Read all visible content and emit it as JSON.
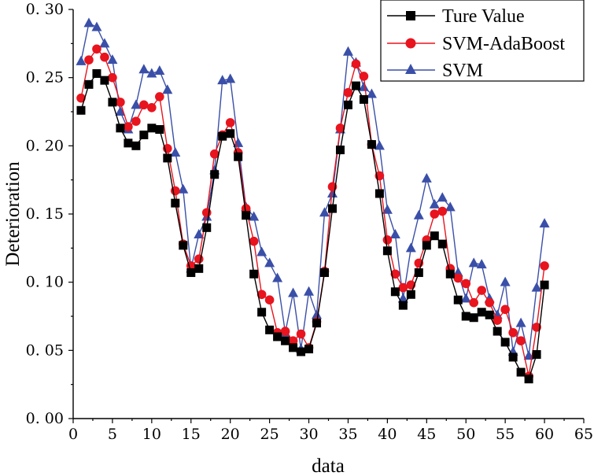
{
  "chart_data": {
    "type": "line",
    "title": "",
    "xlabel": "data",
    "ylabel": "Deterioration",
    "xlim": [
      0,
      65
    ],
    "ylim": [
      0,
      0.3
    ],
    "xticks": [
      0,
      5,
      10,
      15,
      20,
      25,
      30,
      35,
      40,
      45,
      50,
      55,
      60,
      65
    ],
    "yticks": [
      0,
      0.05,
      0.1,
      0.15,
      0.2,
      0.25,
      0.3
    ],
    "xtick_labels": [
      "0",
      "5",
      "10",
      "15",
      "20",
      "25",
      "30",
      "35",
      "40",
      "45",
      "50",
      "55",
      "60",
      "65"
    ],
    "ytick_labels": [
      "0. 00",
      "0. 05",
      "0. 10",
      "0. 15",
      "0. 20",
      "0. 25",
      "0. 30"
    ],
    "grid": false,
    "legend_position": "top-right",
    "x": [
      1,
      2,
      3,
      4,
      5,
      6,
      7,
      8,
      9,
      10,
      11,
      12,
      13,
      14,
      15,
      16,
      17,
      18,
      19,
      20,
      21,
      22,
      23,
      24,
      25,
      26,
      27,
      28,
      29,
      30,
      31,
      32,
      33,
      34,
      35,
      36,
      37,
      38,
      39,
      40,
      41,
      42,
      43,
      44,
      45,
      46,
      47,
      48,
      49,
      50,
      51,
      52,
      53,
      54,
      55,
      56,
      57,
      58,
      59,
      60
    ],
    "series": [
      {
        "name": "Ture Value",
        "color": "#000000",
        "marker": "square",
        "values": [
          0.226,
          0.245,
          0.253,
          0.248,
          0.232,
          0.213,
          0.202,
          0.2,
          0.208,
          0.213,
          0.212,
          0.191,
          0.158,
          0.127,
          0.107,
          0.11,
          0.14,
          0.179,
          0.207,
          0.209,
          0.192,
          0.149,
          0.106,
          0.078,
          0.065,
          0.06,
          0.057,
          0.052,
          0.049,
          0.051,
          0.07,
          0.107,
          0.154,
          0.197,
          0.23,
          0.244,
          0.234,
          0.201,
          0.165,
          0.123,
          0.093,
          0.083,
          0.091,
          0.107,
          0.127,
          0.134,
          0.128,
          0.106,
          0.087,
          0.075,
          0.074,
          0.078,
          0.076,
          0.064,
          0.056,
          0.045,
          0.034,
          0.029,
          0.047,
          0.098
        ]
      },
      {
        "name": "SVM-AdaBoost",
        "color": "#e8141e",
        "marker": "circle",
        "values": [
          0.235,
          0.263,
          0.271,
          0.265,
          0.25,
          0.232,
          0.214,
          0.218,
          0.23,
          0.228,
          0.236,
          0.198,
          0.167,
          0.128,
          0.112,
          0.117,
          0.151,
          0.194,
          0.208,
          0.217,
          0.195,
          0.154,
          0.13,
          0.091,
          0.087,
          0.063,
          0.064,
          0.057,
          0.062,
          0.052,
          0.071,
          0.108,
          0.17,
          0.213,
          0.239,
          0.26,
          0.251,
          0.201,
          0.178,
          0.131,
          0.106,
          0.096,
          0.098,
          0.114,
          0.131,
          0.15,
          0.152,
          0.11,
          0.103,
          0.099,
          0.085,
          0.094,
          0.085,
          0.072,
          0.08,
          0.063,
          0.057,
          0.031,
          0.067,
          0.112
        ]
      },
      {
        "name": "SVM",
        "color": "#3a4fa8",
        "marker": "triangle",
        "values": [
          0.262,
          0.29,
          0.287,
          0.275,
          0.263,
          0.225,
          0.212,
          0.23,
          0.256,
          0.253,
          0.255,
          0.241,
          0.195,
          0.168,
          0.11,
          0.135,
          0.148,
          0.182,
          0.248,
          0.249,
          0.202,
          0.155,
          0.148,
          0.122,
          0.114,
          0.103,
          0.063,
          0.092,
          0.051,
          0.093,
          0.076,
          0.151,
          0.165,
          0.212,
          0.269,
          0.261,
          0.243,
          0.238,
          0.2,
          0.153,
          0.135,
          0.088,
          0.125,
          0.149,
          0.176,
          0.157,
          0.162,
          0.155,
          0.107,
          0.088,
          0.114,
          0.113,
          0.088,
          0.076,
          0.1,
          0.049,
          0.07,
          0.046,
          0.096,
          0.143
        ]
      }
    ]
  }
}
